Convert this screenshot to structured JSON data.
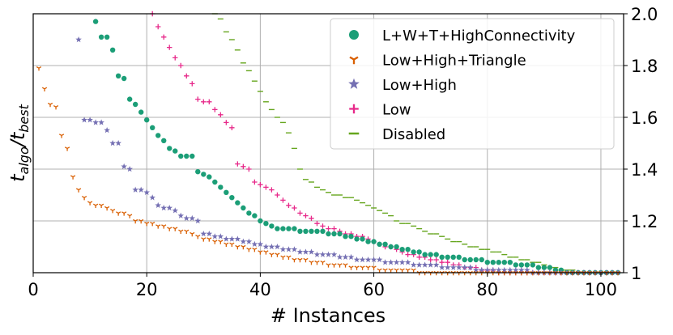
{
  "chart_data": {
    "type": "scatter",
    "xlabel": "# Instances",
    "ylabel_main": "t",
    "ylabel_sub_algo": "algo",
    "ylabel_sep": "/t",
    "ylabel_sub_best": "best",
    "xlim": [
      0,
      104
    ],
    "ylim": [
      1.0,
      2.0
    ],
    "grid": true,
    "legend_position": "top-right",
    "x_ticks": [
      {
        "value": 0,
        "label": "0"
      },
      {
        "value": 20,
        "label": "20"
      },
      {
        "value": 40,
        "label": "40"
      },
      {
        "value": 60,
        "label": "60"
      },
      {
        "value": 80,
        "label": "80"
      },
      {
        "value": 100,
        "label": "100"
      }
    ],
    "y_ticks": [
      {
        "value": 1.0,
        "label": "1"
      },
      {
        "value": 1.2,
        "label": "1.2"
      },
      {
        "value": 1.4,
        "label": "1.4"
      },
      {
        "value": 1.6,
        "label": "1.6"
      },
      {
        "value": 1.8,
        "label": "1.8"
      },
      {
        "value": 2.0,
        "label": "2.0"
      }
    ],
    "series": [
      {
        "name": "Disabled",
        "color": "#66a61e",
        "marker": "hline",
        "start": 32,
        "values": [
          2.0,
          1.98,
          1.93,
          1.9,
          1.86,
          1.81,
          1.78,
          1.74,
          1.7,
          1.66,
          1.63,
          1.6,
          1.58,
          1.54,
          1.48,
          1.4,
          1.36,
          1.35,
          1.33,
          1.32,
          1.31,
          1.3,
          1.3,
          1.29,
          1.29,
          1.28,
          1.27,
          1.26,
          1.25,
          1.24,
          1.23,
          1.22,
          1.2,
          1.19,
          1.19,
          1.18,
          1.17,
          1.16,
          1.15,
          1.15,
          1.14,
          1.13,
          1.12,
          1.12,
          1.11,
          1.1,
          1.1,
          1.09,
          1.09,
          1.08,
          1.08,
          1.07,
          1.06,
          1.06,
          1.05,
          1.05,
          1.04,
          1.04,
          1.03,
          1.02,
          1.02,
          1.01,
          1.01,
          1.01,
          1.0,
          1.0,
          1.0,
          1.0,
          1.0,
          1.0,
          1.0
        ]
      },
      {
        "name": "Low",
        "color": "#e7298a",
        "marker": "plus",
        "start": 21,
        "values": [
          2.0,
          1.95,
          1.91,
          1.87,
          1.83,
          1.8,
          1.76,
          1.73,
          1.67,
          1.66,
          1.66,
          1.63,
          1.61,
          1.58,
          1.56,
          1.42,
          1.41,
          1.4,
          1.35,
          1.34,
          1.33,
          1.32,
          1.3,
          1.28,
          1.26,
          1.25,
          1.23,
          1.22,
          1.21,
          1.19,
          1.18,
          1.17,
          1.17,
          1.16,
          1.15,
          1.15,
          1.14,
          1.14,
          1.13,
          1.12,
          1.11,
          1.1,
          1.1,
          1.09,
          1.08,
          1.07,
          1.07,
          1.06,
          1.06,
          1.05,
          1.05,
          1.04,
          1.04,
          1.03,
          1.03,
          1.02,
          1.02,
          1.02,
          1.01,
          1.01,
          1.01,
          1.0,
          1.0,
          1.0,
          1.0,
          1.0,
          1.0,
          1.0,
          1.0,
          1.0,
          1.0,
          1.0,
          1.0,
          1.0,
          1.0,
          1.0,
          1.0,
          1.0,
          1.0,
          1.0,
          1.0,
          1.0
        ]
      },
      {
        "name": "L+W+T+HighConnectivity",
        "color": "#1b9e77",
        "marker": "circle",
        "start": 11,
        "values": [
          1.97,
          1.91,
          1.91,
          1.86,
          1.76,
          1.75,
          1.67,
          1.65,
          1.62,
          1.59,
          1.56,
          1.53,
          1.51,
          1.48,
          1.47,
          1.45,
          1.45,
          1.45,
          1.39,
          1.38,
          1.37,
          1.35,
          1.33,
          1.31,
          1.29,
          1.27,
          1.25,
          1.23,
          1.22,
          1.2,
          1.19,
          1.18,
          1.17,
          1.17,
          1.17,
          1.17,
          1.16,
          1.16,
          1.16,
          1.16,
          1.16,
          1.15,
          1.15,
          1.15,
          1.14,
          1.14,
          1.13,
          1.13,
          1.12,
          1.12,
          1.11,
          1.11,
          1.1,
          1.1,
          1.09,
          1.09,
          1.08,
          1.08,
          1.07,
          1.07,
          1.07,
          1.06,
          1.06,
          1.06,
          1.06,
          1.05,
          1.05,
          1.05,
          1.05,
          1.04,
          1.04,
          1.04,
          1.04,
          1.04,
          1.03,
          1.03,
          1.03,
          1.03,
          1.02,
          1.02,
          1.02,
          1.01,
          1.01,
          1.0,
          1.0,
          1.0,
          1.0,
          1.0,
          1.0,
          1.0,
          1.0,
          1.0,
          1.0
        ]
      },
      {
        "name": "Low+High",
        "color": "#7570b3",
        "marker": "star",
        "start": 8,
        "values": [
          1.9,
          1.59,
          1.59,
          1.58,
          1.58,
          1.55,
          1.5,
          1.5,
          1.41,
          1.4,
          1.32,
          1.32,
          1.31,
          1.29,
          1.26,
          1.25,
          1.25,
          1.24,
          1.22,
          1.21,
          1.21,
          1.2,
          1.15,
          1.15,
          1.14,
          1.14,
          1.13,
          1.13,
          1.13,
          1.12,
          1.12,
          1.11,
          1.11,
          1.1,
          1.1,
          1.1,
          1.09,
          1.09,
          1.09,
          1.08,
          1.08,
          1.08,
          1.07,
          1.07,
          1.07,
          1.07,
          1.06,
          1.06,
          1.06,
          1.05,
          1.05,
          1.05,
          1.05,
          1.05,
          1.04,
          1.04,
          1.04,
          1.04,
          1.04,
          1.03,
          1.03,
          1.03,
          1.03,
          1.03,
          1.02,
          1.02,
          1.02,
          1.02,
          1.02,
          1.02,
          1.01,
          1.01,
          1.01,
          1.01,
          1.01,
          1.01,
          1.01,
          1.01,
          1.01,
          1.01,
          1.0,
          1.0,
          1.0,
          1.0,
          1.0,
          1.0,
          1.0,
          1.0,
          1.0,
          1.0,
          1.0,
          1.0,
          1.0,
          1.0,
          1.0,
          1.0
        ]
      },
      {
        "name": "Low+High+Triangle",
        "color": "#d95f02",
        "marker": "tri",
        "start": 1,
        "values": [
          1.79,
          1.71,
          1.65,
          1.64,
          1.53,
          1.48,
          1.37,
          1.32,
          1.29,
          1.27,
          1.26,
          1.26,
          1.25,
          1.24,
          1.23,
          1.23,
          1.22,
          1.2,
          1.2,
          1.19,
          1.19,
          1.18,
          1.18,
          1.17,
          1.17,
          1.16,
          1.16,
          1.15,
          1.14,
          1.13,
          1.13,
          1.12,
          1.12,
          1.11,
          1.11,
          1.1,
          1.1,
          1.09,
          1.09,
          1.08,
          1.08,
          1.07,
          1.07,
          1.06,
          1.06,
          1.05,
          1.05,
          1.05,
          1.04,
          1.04,
          1.04,
          1.03,
          1.03,
          1.03,
          1.03,
          1.02,
          1.02,
          1.02,
          1.02,
          1.02,
          1.01,
          1.01,
          1.01,
          1.01,
          1.01,
          1.01,
          1.01,
          1.0,
          1.0,
          1.0,
          1.0,
          1.0,
          1.0,
          1.0,
          1.0,
          1.0,
          1.0,
          1.0,
          1.0,
          1.0,
          1.0,
          1.0,
          1.0,
          1.0,
          1.0,
          1.0,
          1.0,
          1.0,
          1.0,
          1.0,
          1.0,
          1.0,
          1.0,
          1.0,
          1.0,
          1.0,
          1.0,
          1.0,
          1.0,
          1.0,
          1.0,
          1.0,
          1.0
        ]
      }
    ],
    "legend": [
      {
        "name": "L+W+T+HighConnectivity",
        "color": "#1b9e77",
        "marker": "circle"
      },
      {
        "name": "Low+High+Triangle",
        "color": "#d95f02",
        "marker": "tri"
      },
      {
        "name": "Low+High",
        "color": "#7570b3",
        "marker": "star"
      },
      {
        "name": "Low",
        "color": "#e7298a",
        "marker": "plus"
      },
      {
        "name": "Disabled",
        "color": "#66a61e",
        "marker": "hline"
      }
    ]
  }
}
